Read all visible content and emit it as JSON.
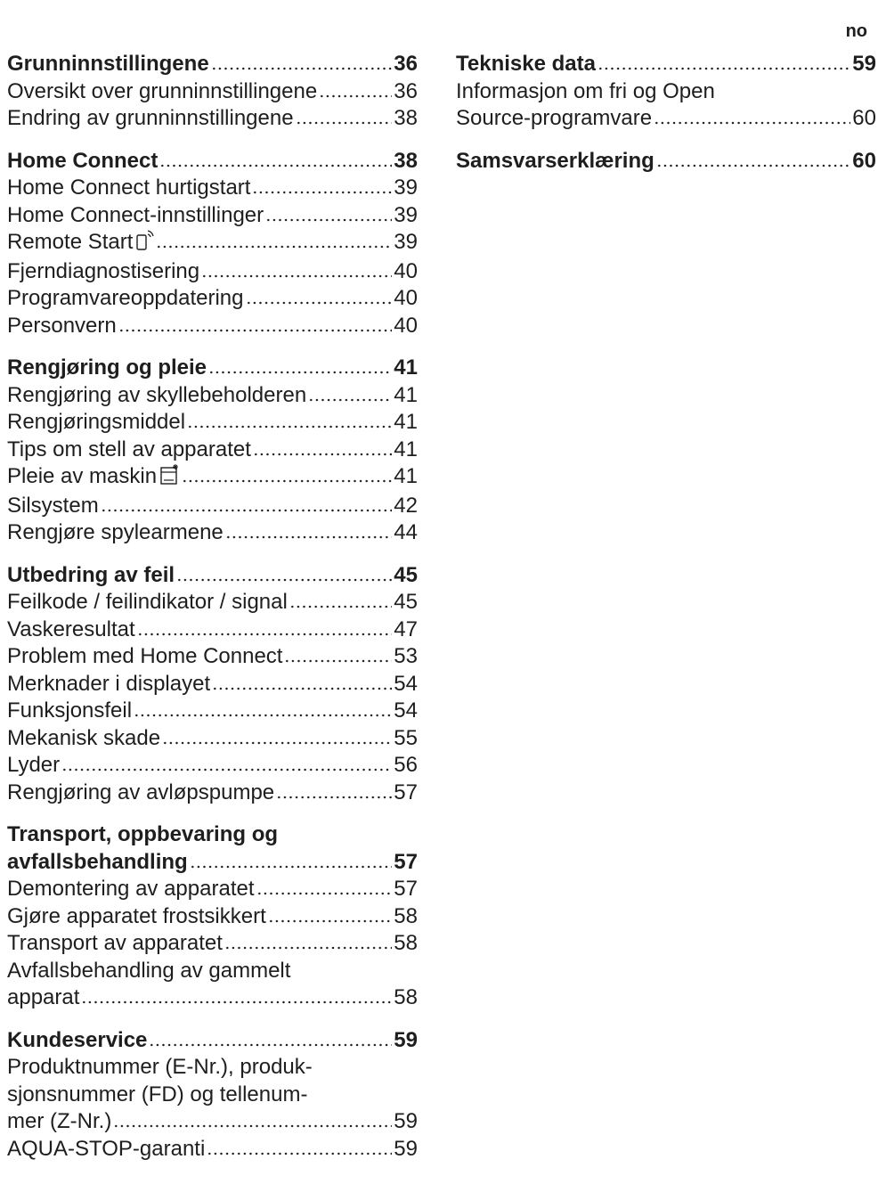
{
  "language": "no",
  "columns": [
    {
      "sections": [
        {
          "title": [
            "Grunninnstillingene"
          ],
          "page": 36,
          "items": [
            {
              "text": [
                "Oversikt over grunninnstillingene"
              ],
              "page": 36
            },
            {
              "text": [
                "Endring av grunninnstillingene"
              ],
              "page": 38
            }
          ]
        },
        {
          "title": [
            "Home Connect"
          ],
          "page": 38,
          "items": [
            {
              "text": [
                "Home Connect hurtigstart"
              ],
              "page": 39
            },
            {
              "text": [
                "Home Connect-innstillinger"
              ],
              "page": 39
            },
            {
              "text": [
                "Remote Start"
              ],
              "page": 39
            },
            {
              "text": [
                "Fjerndiagnostisering"
              ],
              "page": 40
            },
            {
              "text": [
                "Programvareoppdatering"
              ],
              "page": 40
            },
            {
              "text": [
                "Personvern"
              ],
              "page": 40
            }
          ]
        },
        {
          "title": [
            "Rengjøring og pleie"
          ],
          "page": 41,
          "items": [
            {
              "text": [
                "Rengjøring av skyllebeholderen"
              ],
              "page": 41
            },
            {
              "text": [
                "Rengjøringsmiddel"
              ],
              "page": 41
            },
            {
              "text": [
                "Tips om stell av apparatet"
              ],
              "page": 41
            },
            {
              "text": [
                "Pleie av maskin"
              ],
              "page": 41
            },
            {
              "text": [
                "Silsystem"
              ],
              "page": 42
            },
            {
              "text": [
                "Rengjøre spylearmene"
              ],
              "page": 44
            }
          ]
        },
        {
          "title": [
            "Utbedring av feil"
          ],
          "page": 45,
          "items": [
            {
              "text": [
                "Feilkode / feilindikator / signal"
              ],
              "page": 45
            },
            {
              "text": [
                "Vaskeresultat"
              ],
              "page": 47
            },
            {
              "text": [
                "Problem med Home Connect"
              ],
              "page": 53
            },
            {
              "text": [
                "Merknader i displayet"
              ],
              "page": 54
            },
            {
              "text": [
                "Funksjonsfeil"
              ],
              "page": 54
            },
            {
              "text": [
                "Mekanisk skade"
              ],
              "page": 55
            },
            {
              "text": [
                "Lyder"
              ],
              "page": 56
            },
            {
              "text": [
                "Rengjøring av avløpspumpe"
              ],
              "page": 57
            }
          ]
        },
        {
          "title": [
            "Transport, oppbevaring og",
            "avfallsbehandling"
          ],
          "page": 57,
          "items": [
            {
              "text": [
                "Demontering av apparatet"
              ],
              "page": 57
            },
            {
              "text": [
                "Gjøre apparatet frostsikkert"
              ],
              "page": 58
            },
            {
              "text": [
                "Transport av apparatet"
              ],
              "page": 58
            },
            {
              "text": [
                "Avfallsbehandling av gammelt",
                "apparat"
              ],
              "page": 58
            }
          ]
        },
        {
          "title": [
            "Kundeservice"
          ],
          "page": 59,
          "items": [
            {
              "text": [
                "Produktnummer (E-Nr.), produk-",
                "sjonsnummer (FD) og tellenum-",
                "mer (Z-Nr.)"
              ],
              "page": 59
            },
            {
              "text": [
                "AQUA-STOP-garanti"
              ],
              "page": 59
            }
          ]
        }
      ]
    },
    {
      "sections": [
        {
          "title": [
            "Tekniske data"
          ],
          "page": 59,
          "items": [
            {
              "text": [
                "Informasjon om fri og Open",
                "Source-programvare"
              ],
              "page": 60
            }
          ]
        },
        {
          "title": [
            "Samsvarserklæring"
          ],
          "page": 60,
          "items": []
        }
      ]
    }
  ]
}
